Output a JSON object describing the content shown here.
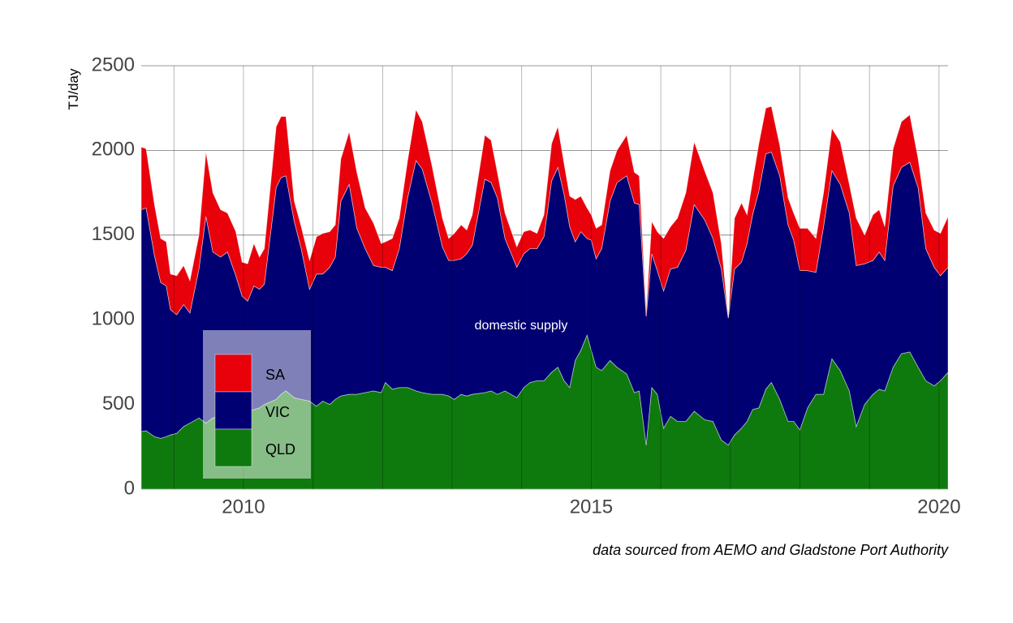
{
  "chart_data": {
    "type": "stacked_area",
    "y_label": "TJ/day",
    "annotation": "domestic supply",
    "source": "data sourced from AEMO and Gladstone Port Authority",
    "xlim": [
      2008.53,
      2020.13
    ],
    "xticks": [
      2010,
      2015,
      2020
    ],
    "xgrid": [
      2009,
      2010,
      2011,
      2012,
      2013,
      2014,
      2015,
      2016,
      2017,
      2018,
      2019,
      2020
    ],
    "ylim": [
      0,
      2500
    ],
    "yticks": [
      0,
      500,
      1000,
      1500,
      2000,
      2500
    ],
    "x": [
      2008.53,
      2008.6,
      2008.72,
      2008.81,
      2008.89,
      2008.95,
      2009.04,
      2009.14,
      2009.23,
      2009.36,
      2009.46,
      2009.56,
      2009.67,
      2009.77,
      2009.89,
      2009.98,
      2010.06,
      2010.15,
      2010.23,
      2010.3,
      2010.47,
      2010.54,
      2010.61,
      2010.73,
      2010.83,
      2010.95,
      2011.05,
      2011.14,
      2011.24,
      2011.32,
      2011.4,
      2011.52,
      2011.63,
      2011.75,
      2011.87,
      2011.98,
      2012.04,
      2012.14,
      2012.24,
      2012.36,
      2012.48,
      2012.57,
      2012.71,
      2012.86,
      2012.95,
      2013.03,
      2013.13,
      2013.21,
      2013.29,
      2013.47,
      2013.56,
      2013.65,
      2013.76,
      2013.93,
      2014.03,
      2014.12,
      2014.22,
      2014.32,
      2014.43,
      2014.52,
      2014.61,
      2014.69,
      2014.77,
      2014.85,
      2014.94,
      2015.0,
      2015.07,
      2015.15,
      2015.27,
      2015.37,
      2015.51,
      2015.62,
      2015.69,
      2015.79,
      2015.87,
      2015.95,
      2016.04,
      2016.14,
      2016.24,
      2016.36,
      2016.48,
      2016.63,
      2016.75,
      2016.87,
      2016.97,
      2017.06,
      2017.16,
      2017.24,
      2017.32,
      2017.41,
      2017.51,
      2017.59,
      2017.71,
      2017.83,
      2017.91,
      2018.0,
      2018.11,
      2018.23,
      2018.34,
      2018.46,
      2018.58,
      2018.71,
      2018.81,
      2018.93,
      2019.05,
      2019.14,
      2019.22,
      2019.34,
      2019.46,
      2019.58,
      2019.7,
      2019.81,
      2019.93,
      2020.02,
      2020.13
    ],
    "series": [
      {
        "name": "QLD",
        "color": "#0e7a0e",
        "values": [
          340,
          345,
          310,
          300,
          310,
          320,
          330,
          370,
          390,
          420,
          390,
          420,
          430,
          450,
          460,
          460,
          460,
          470,
          480,
          500,
          530,
          560,
          580,
          540,
          530,
          520,
          490,
          520,
          500,
          530,
          550,
          560,
          560,
          570,
          580,
          570,
          630,
          590,
          600,
          600,
          580,
          570,
          560,
          560,
          550,
          530,
          560,
          550,
          560,
          570,
          580,
          560,
          580,
          540,
          600,
          630,
          640,
          640,
          690,
          720,
          640,
          600,
          760,
          820,
          910,
          820,
          720,
          700,
          760,
          720,
          680,
          570,
          580,
          260,
          600,
          560,
          360,
          430,
          400,
          400,
          460,
          410,
          400,
          290,
          260,
          320,
          360,
          400,
          470,
          480,
          590,
          630,
          530,
          400,
          400,
          350,
          480,
          560,
          560,
          770,
          700,
          580,
          370,
          500,
          560,
          590,
          580,
          720,
          800,
          810,
          720,
          640,
          610,
          640,
          690
        ]
      },
      {
        "name": "VIC",
        "color": "#000073",
        "values": [
          1310,
          1315,
          1070,
          920,
          890,
          740,
          700,
          720,
          650,
          880,
          1220,
          980,
          940,
          950,
          800,
          680,
          650,
          730,
          700,
          710,
          1250,
          1280,
          1270,
          1040,
          890,
          660,
          780,
          750,
          810,
          840,
          1150,
          1240,
          980,
          850,
          740,
          740,
          680,
          700,
          820,
          1120,
          1360,
          1320,
          1130,
          870,
          800,
          820,
          800,
          840,
          880,
          1260,
          1230,
          1160,
          900,
          770,
          790,
          790,
          780,
          850,
          1130,
          1180,
          1100,
          950,
          700,
          700,
          570,
          650,
          640,
          720,
          940,
          1090,
          1170,
          1120,
          1100,
          760,
          790,
          730,
          810,
          870,
          910,
          1010,
          1220,
          1180,
          1080,
          1010,
          750,
          980,
          980,
          1050,
          1150,
          1280,
          1390,
          1360,
          1320,
          1160,
          1070,
          940,
          810,
          720,
          990,
          1110,
          1100,
          1050,
          950,
          830,
          790,
          810,
          770,
          1070,
          1100,
          1120,
          1060,
          780,
          700,
          620,
          620
        ]
      },
      {
        "name": "SA",
        "color": "#e8000b",
        "values": [
          370,
          350,
          300,
          260,
          260,
          210,
          230,
          230,
          190,
          200,
          380,
          350,
          280,
          230,
          260,
          200,
          220,
          250,
          190,
          210,
          360,
          360,
          350,
          120,
          130,
          170,
          220,
          240,
          210,
          190,
          250,
          310,
          330,
          240,
          250,
          140,
          150,
          190,
          180,
          220,
          300,
          280,
          220,
          170,
          130,
          160,
          200,
          140,
          180,
          260,
          250,
          150,
          150,
          120,
          130,
          110,
          90,
          130,
          220,
          240,
          180,
          180,
          250,
          210,
          180,
          150,
          180,
          140,
          180,
          190,
          240,
          180,
          170,
          30,
          190,
          230,
          310,
          250,
          290,
          340,
          370,
          290,
          270,
          150,
          0,
          300,
          350,
          170,
          200,
          280,
          270,
          270,
          180,
          160,
          160,
          250,
          250,
          200,
          200,
          250,
          250,
          170,
          280,
          170,
          270,
          250,
          200,
          220,
          270,
          280,
          170,
          210,
          220,
          250,
          300
        ]
      }
    ]
  }
}
